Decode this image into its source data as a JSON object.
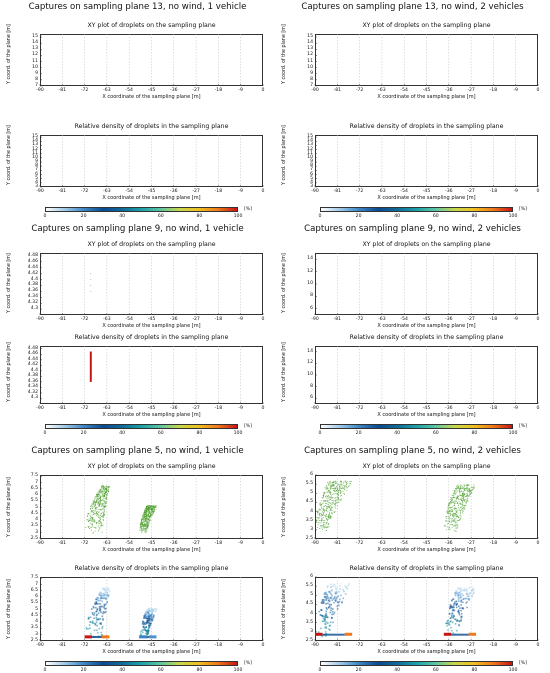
{
  "chart_data": [
    {
      "type": "scatter",
      "panel_title": "Captures on sampling plane 13, no wind, 1 vehicle",
      "title": "XY plot of droplets on the sampling plane",
      "xlabel": "X coordinate of the sampling plane [m]",
      "ylabel": "Y coord. of the plane [m]",
      "xticks": [
        "-90",
        "-81",
        "-72",
        "-63",
        "-54",
        "-45",
        "-36",
        "-27",
        "-18",
        "-9",
        "0"
      ],
      "yticks": [
        "7",
        "8",
        "9",
        "10",
        "11",
        "12",
        "13",
        "14",
        "15"
      ],
      "xlim": [
        -90,
        0
      ],
      "ylim": [
        7,
        15.5
      ],
      "points": []
    },
    {
      "type": "heatmap",
      "title": "Relative density of droplets in the sampling plane",
      "xlabel": "X coordinate of the sampling plane [m]",
      "ylabel": "Y coord. of the plane [m]",
      "xticks": [
        "-90",
        "-81",
        "-72",
        "-63",
        "-54",
        "-45",
        "-36",
        "-27",
        "-18",
        "-9",
        "0"
      ],
      "yticks": [
        "3",
        "4",
        "5",
        "6",
        "7",
        "8",
        "9",
        "10",
        "11",
        "12",
        "13",
        "14",
        "15"
      ],
      "xlim": [
        -90,
        0
      ],
      "ylim": [
        3,
        15.5
      ],
      "colorbar": {
        "ticks": [
          "0",
          "20",
          "40",
          "60",
          "80",
          "100"
        ],
        "unit": "[%]"
      },
      "cells": []
    },
    {
      "type": "scatter",
      "panel_title": "Captures on sampling plane 13, no wind, 2 vehicles",
      "title": "XY plot of droplets on the sampling plane",
      "xlabel": "X coordinate of the sampling plane [m]",
      "ylabel": "Y coord. of the plane [m]",
      "xticks": [
        "-90",
        "-81",
        "-72",
        "-63",
        "-54",
        "-45",
        "-36",
        "-27",
        "-18",
        "-9",
        "0"
      ],
      "yticks": [
        "7",
        "8",
        "9",
        "10",
        "11",
        "12",
        "13",
        "14",
        "15"
      ],
      "xlim": [
        -90,
        0
      ],
      "ylim": [
        7,
        15.5
      ],
      "points": []
    },
    {
      "type": "heatmap",
      "title": "Relative density of droplets in the sampling plane",
      "xlabel": "X coordinate of the sampling plane [m]",
      "ylabel": "Y coord. of the plane [m]",
      "xticks": [
        "-90",
        "-81",
        "-72",
        "-63",
        "-54",
        "-45",
        "-36",
        "-27",
        "-18",
        "-9",
        "0"
      ],
      "yticks": [
        "3",
        "4",
        "5",
        "6",
        "7",
        "8",
        "9",
        "10",
        "11",
        "12",
        "13",
        "14",
        "15"
      ],
      "xlim": [
        -90,
        0
      ],
      "ylim": [
        3,
        15.5
      ],
      "colorbar": {
        "ticks": [
          "0",
          "20",
          "40",
          "60",
          "80",
          "100"
        ],
        "unit": "[%]"
      },
      "cells": []
    },
    {
      "type": "scatter",
      "panel_title": "Captures on sampling plane 9, no wind, 1 vehicle",
      "title": "XY plot of droplets on the sampling plane",
      "xlabel": "X coordinate of the sampling plane [m]",
      "ylabel": "Y coord. of the plane [m]",
      "xticks": [
        "-90",
        "-81",
        "-72",
        "-63",
        "-54",
        "-45",
        "-36",
        "-27",
        "-18",
        "-9",
        "0"
      ],
      "yticks": [
        "4.3",
        "4.32",
        "4.34",
        "4.36",
        "4.38",
        "4.4",
        "4.42",
        "4.44",
        "4.46",
        "4.48"
      ],
      "xlim": [
        -90,
        0
      ],
      "ylim": [
        4.28,
        4.49
      ],
      "points": [
        [
          -69.5,
          4.42
        ],
        [
          -69.5,
          4.4
        ],
        [
          -69.6,
          4.38
        ],
        [
          -69.5,
          4.36
        ]
      ]
    },
    {
      "type": "heatmap",
      "title": "Relative density of droplets in the sampling plane",
      "xlabel": "X coordinate of the sampling plane [m]",
      "ylabel": "Y coord. of the plane [m]",
      "xticks": [
        "-90",
        "-81",
        "-72",
        "-63",
        "-54",
        "-45",
        "-36",
        "-27",
        "-18",
        "-9",
        "0"
      ],
      "yticks": [
        "4.3",
        "4.32",
        "4.34",
        "4.36",
        "4.38",
        "4.4",
        "4.42",
        "4.44",
        "4.46",
        "4.48"
      ],
      "xlim": [
        -90,
        0
      ],
      "ylim": [
        4.28,
        4.49
      ],
      "colorbar": {
        "ticks": [
          "0",
          "20",
          "40",
          "60",
          "80",
          "100"
        ],
        "unit": "[%]"
      },
      "cells": [
        {
          "x0": -69.9,
          "x1": -69.1,
          "y0": 4.36,
          "y1": 4.47,
          "value": 100
        }
      ]
    },
    {
      "type": "scatter",
      "panel_title": "Captures on sampling plane 9, no wind, 2 vehicles",
      "title": "XY plot of droplets on the sampling plane",
      "xlabel": "X coordinate of the sampling plane [m]",
      "ylabel": "Y coord. of the plane [m]",
      "xticks": [
        "-90",
        "-81",
        "-72",
        "-63",
        "-54",
        "-45",
        "-36",
        "-27",
        "-18",
        "-9",
        "0"
      ],
      "yticks": [
        "6",
        "8",
        "10",
        "12",
        "14"
      ],
      "xlim": [
        -90,
        0
      ],
      "ylim": [
        5,
        15
      ],
      "points": []
    },
    {
      "type": "heatmap",
      "title": "Relative density of droplets in the sampling plane",
      "xlabel": "X coordinate of the sampling plane [m]",
      "ylabel": "Y coord. of the plane [m]",
      "xticks": [
        "-90",
        "-81",
        "-72",
        "-63",
        "-54",
        "-45",
        "-36",
        "-27",
        "-18",
        "-9",
        "0"
      ],
      "yticks": [
        "6",
        "8",
        "10",
        "12",
        "14"
      ],
      "xlim": [
        -90,
        0
      ],
      "ylim": [
        5,
        15
      ],
      "colorbar": {
        "ticks": [
          "0",
          "20",
          "40",
          "60",
          "80",
          "100"
        ],
        "unit": "[%]"
      },
      "cells": []
    },
    {
      "type": "scatter",
      "panel_title": "Captures on sampling plane 5, no wind, 1 vehicle",
      "title": "XY plot of droplets on the sampling plane",
      "xlabel": "X coordinate of the sampling plane [m]",
      "ylabel": "Y coord. of the plane [m]",
      "xticks": [
        "-90",
        "-81",
        "-72",
        "-63",
        "-54",
        "-45",
        "-36",
        "-27",
        "-18",
        "-9",
        "0"
      ],
      "yticks": [
        "2.5",
        "3",
        "3.5",
        "4",
        "4.5",
        "5",
        "5.5",
        "6",
        "6.5",
        "7",
        "7.5"
      ],
      "xlim": [
        -90,
        0
      ],
      "ylim": [
        2.5,
        7.6
      ],
      "marker_color": "#4a9e2a",
      "plumes": [
        {
          "x_start": -72,
          "y_start": 3.0,
          "x_peak": -65,
          "y_peak": 6.8,
          "x_end": -62,
          "y_end": 3.0
        },
        {
          "x_start": -50,
          "y_start": 3.0,
          "x_peak": -47,
          "y_peak": 5.2,
          "x_end": -43,
          "y_end": 3.0
        }
      ]
    },
    {
      "type": "heatmap",
      "title": "Relative density of droplets in the sampling plane",
      "xlabel": "X coordinate of the sampling plane [m]",
      "ylabel": "Y coord. of the plane [m]",
      "xticks": [
        "-90",
        "-81",
        "-72",
        "-63",
        "-54",
        "-45",
        "-36",
        "-27",
        "-18",
        "-9",
        "0"
      ],
      "yticks": [
        "2.5",
        "3",
        "3.5",
        "4",
        "4.5",
        "5",
        "5.5",
        "6",
        "6.5",
        "7",
        "7.5"
      ],
      "xlim": [
        -90,
        0
      ],
      "ylim": [
        2.5,
        7.6
      ],
      "colorbar": {
        "ticks": [
          "0",
          "20",
          "40",
          "60",
          "80",
          "100"
        ],
        "unit": "[%]"
      },
      "plumes": [
        {
          "x_start": -72,
          "y_start": 2.7,
          "x_peak": -65,
          "y_peak": 6.8,
          "x_end": -62,
          "y_end": 2.7,
          "peak_value": 100
        },
        {
          "x_start": -50,
          "y_start": 2.7,
          "x_peak": -47,
          "y_peak": 5.2,
          "x_end": -43,
          "y_end": 2.7,
          "peak_value": 20
        }
      ]
    },
    {
      "type": "scatter",
      "panel_title": "Captures on sampling plane 5, no wind, 2 vehicles",
      "title": "XY plot of droplets on the sampling plane",
      "xlabel": "X coordinate of the sampling plane [m]",
      "ylabel": "Y coord. of the plane [m]",
      "xticks": [
        "-90",
        "-81",
        "-72",
        "-63",
        "-54",
        "-45",
        "-36",
        "-27",
        "-18",
        "-9",
        "0"
      ],
      "yticks": [
        "2.5",
        "3",
        "3.5",
        "4",
        "4.5",
        "5",
        "5.5",
        "6"
      ],
      "xlim": [
        -90,
        0
      ],
      "ylim": [
        2.5,
        6
      ],
      "marker_color": "#4a9e2a",
      "plumes": [
        {
          "x_start": -90,
          "y_start": 2.9,
          "x_peak": -85,
          "y_peak": 5.7,
          "x_end": -75,
          "y_end": 2.9
        },
        {
          "x_start": -38,
          "y_start": 2.9,
          "x_peak": -33,
          "y_peak": 5.5,
          "x_end": -25,
          "y_end": 2.9
        }
      ]
    },
    {
      "type": "heatmap",
      "title": "Relative density of droplets in the sampling plane",
      "xlabel": "X coordinate of the sampling plane [m]",
      "ylabel": "Y coord. of the plane [m]",
      "xticks": [
        "-90",
        "-81",
        "-72",
        "-63",
        "-54",
        "-45",
        "-36",
        "-27",
        "-18",
        "-9",
        "0"
      ],
      "yticks": [
        "2.5",
        "3",
        "3.5",
        "4",
        "4.5",
        "5",
        "5.5",
        "6"
      ],
      "xlim": [
        -90,
        0
      ],
      "ylim": [
        2.5,
        6
      ],
      "colorbar": {
        "ticks": [
          "0",
          "20",
          "40",
          "60",
          "80",
          "100"
        ],
        "unit": "[%]"
      },
      "plumes": [
        {
          "x_start": -90,
          "y_start": 2.7,
          "x_peak": -85,
          "y_peak": 5.7,
          "x_end": -75,
          "y_end": 2.7,
          "peak_value": 100
        },
        {
          "x_start": -38,
          "y_start": 2.7,
          "x_peak": -33,
          "y_peak": 5.5,
          "x_end": -25,
          "y_end": 2.7,
          "peak_value": 100
        }
      ]
    }
  ]
}
